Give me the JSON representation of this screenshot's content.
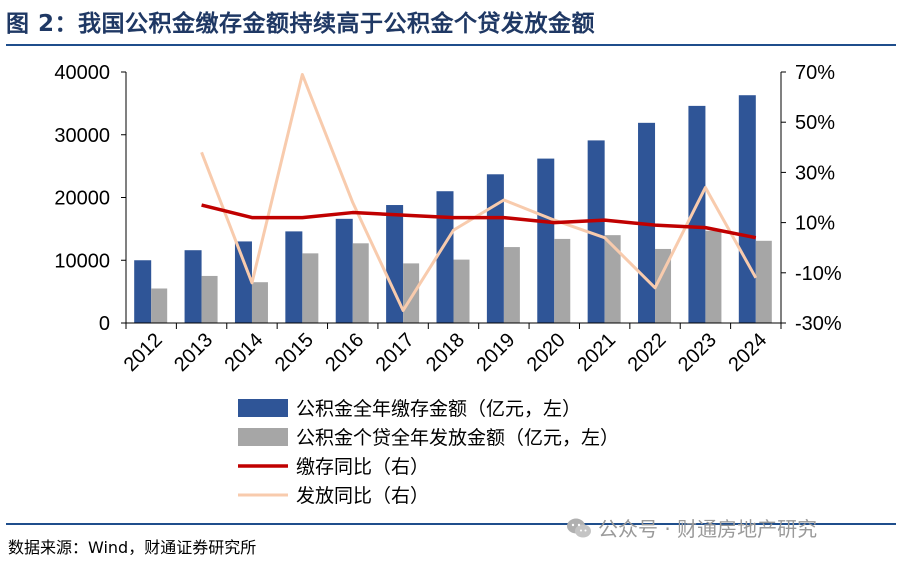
{
  "title": "图 2：我国公积金缴存金额持续高于公积金个贷发放金额",
  "source": "数据来源：Wind，财通证券研究所",
  "watermark": "公众号 · 财通房地产研究",
  "colors": {
    "deposit": "#2f5597",
    "loan": "#a6a6a6",
    "deposit_yoy": "#c00000",
    "loan_yoy": "#f8cbad",
    "rule": "#1f4e8c"
  },
  "chart_data": {
    "type": "bar",
    "categories": [
      "2012",
      "2013",
      "2014",
      "2015",
      "2016",
      "2017",
      "2018",
      "2019",
      "2020",
      "2021",
      "2022",
      "2023",
      "2024"
    ],
    "series": [
      {
        "name": "公积金全年缴存金额（亿元，左）",
        "type": "bar",
        "axis": "left",
        "values": [
          10000,
          11600,
          13000,
          14600,
          16600,
          18800,
          21000,
          23700,
          26200,
          29100,
          31900,
          34600,
          36300
        ]
      },
      {
        "name": "公积金个贷全年发放金额（亿元，左）",
        "type": "bar",
        "axis": "left",
        "values": [
          5500,
          7500,
          6500,
          11100,
          12700,
          9500,
          10100,
          12100,
          13400,
          14000,
          11800,
          14700,
          13100
        ]
      },
      {
        "name": "缴存同比（右）",
        "type": "line",
        "axis": "right",
        "values": [
          null,
          17,
          12,
          12,
          14,
          13,
          12,
          12,
          10,
          11,
          9,
          8,
          4
        ]
      },
      {
        "name": "发放同比（右）",
        "type": "line",
        "axis": "right",
        "values": [
          null,
          38,
          -14,
          69,
          18,
          -25,
          7,
          19,
          11,
          4,
          -16,
          24,
          -12
        ]
      }
    ],
    "y_left": {
      "ylim": [
        0,
        40000
      ],
      "ticks": [
        "0",
        "10000",
        "20000",
        "30000",
        "40000"
      ]
    },
    "y_right": {
      "ylim": [
        -30,
        70
      ],
      "ticks": [
        "-30%",
        "-10%",
        "10%",
        "30%",
        "50%",
        "70%"
      ]
    },
    "legend_position": "bottom"
  }
}
